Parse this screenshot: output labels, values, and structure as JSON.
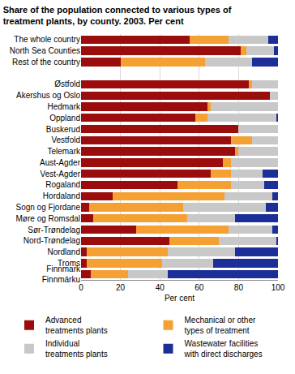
{
  "chart_data": {
    "type": "bar",
    "title": "Share of the population connected to various types of\ntreatment plants, by county. 2003. Per cent",
    "x_label": "Per cent",
    "orientation": "horizontal",
    "stacked": true,
    "grid": true,
    "legend": "bottom",
    "xlim": [
      0,
      100
    ],
    "xticks": [
      0,
      20,
      40,
      60,
      80,
      100
    ],
    "categories": [
      "The whole country",
      "North Sea Counties",
      "Rest of the country",
      null,
      "Østfold",
      "Akershus og Oslo",
      "Hedmark",
      "Oppland",
      "Buskerud",
      "Vestfold",
      "Telemark",
      "Aust-Agder",
      "Vest-Agder",
      "Rogaland",
      "Hordaland",
      "Sogn og Fjordane",
      "Møre og Romsdal",
      "Sør-Trøndelag",
      "Nord-Trøndelag",
      "Nordland",
      "Troms",
      "Finnmark\nFinnmárku"
    ],
    "series": [
      {
        "name": "Advanced\ntreatments plants",
        "color": "#9b0d0d",
        "values": [
          55,
          81,
          20,
          null,
          85,
          96,
          64,
          58,
          80,
          76,
          78,
          72,
          66,
          49,
          16,
          4,
          6,
          28,
          45,
          3,
          3,
          5
        ]
      },
      {
        "name": "Mechanical or other\ntypes of treatment",
        "color": "#f5a033",
        "values": [
          20,
          3,
          43,
          null,
          2,
          0,
          2,
          6,
          0,
          11,
          2,
          4,
          10,
          27,
          57,
          48,
          48,
          47,
          25,
          41,
          38,
          19
        ]
      },
      {
        "name": "Individual\ntreatments plants",
        "color": "#c8c8c8",
        "values": [
          20,
          14,
          24,
          null,
          13,
          4,
          34,
          35,
          20,
          13,
          20,
          24,
          16,
          17,
          24,
          42,
          24,
          22,
          29,
          34,
          26,
          20
        ]
      },
      {
        "name": "Wastewater facilities\nwith direct discharges",
        "color": "#1c2f99",
        "values": [
          5,
          2,
          13,
          null,
          0,
          0,
          0,
          1,
          0,
          0,
          0,
          0,
          8,
          7,
          3,
          6,
          22,
          3,
          1,
          22,
          33,
          56
        ]
      }
    ]
  }
}
